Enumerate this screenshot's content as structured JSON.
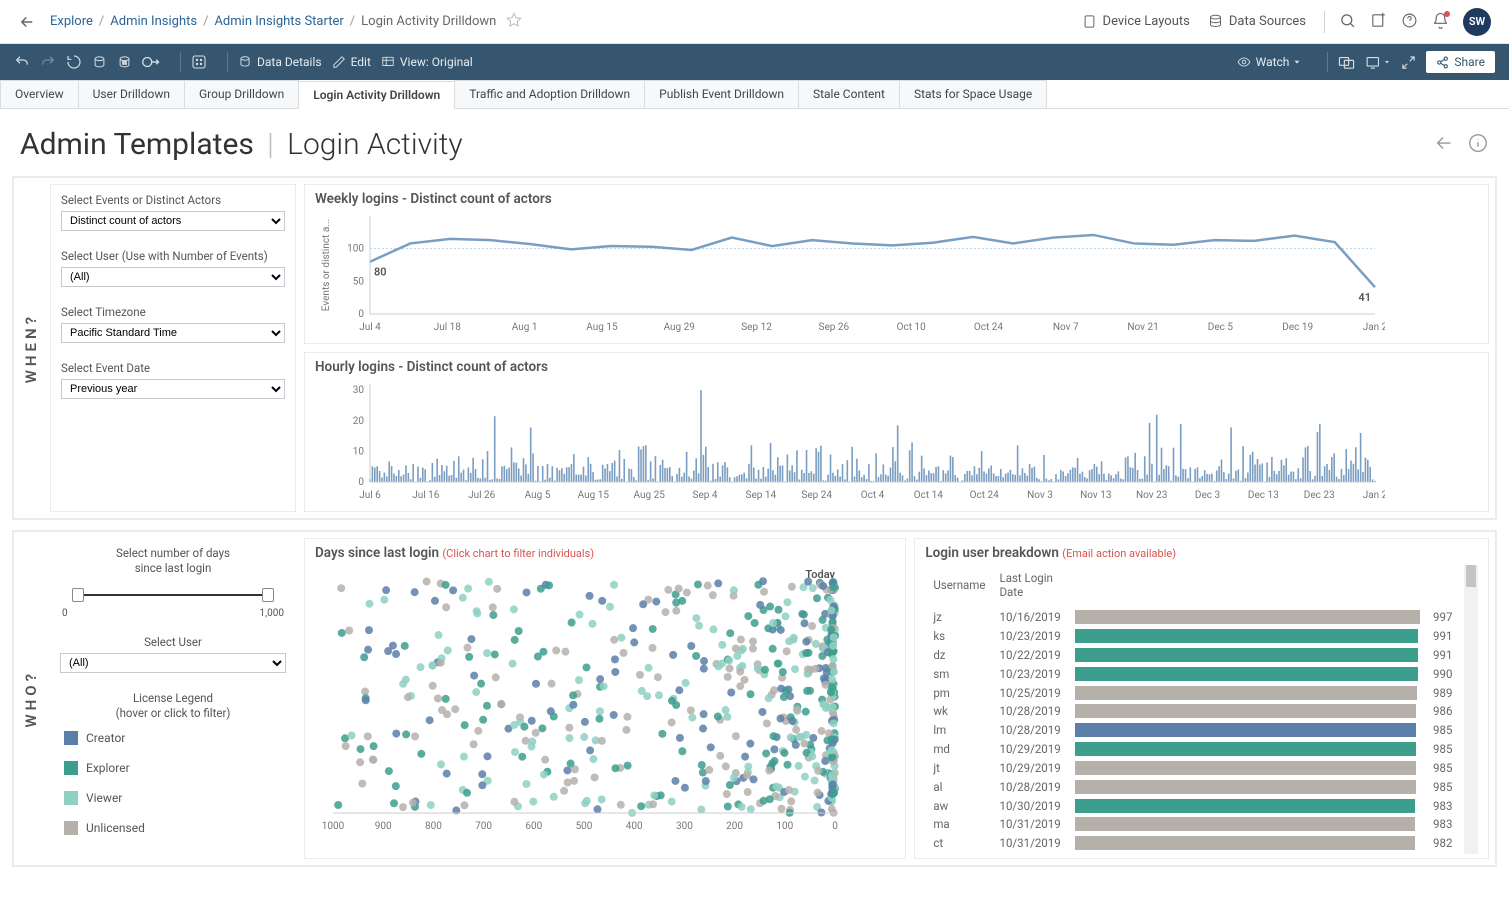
{
  "breadcrumbs": {
    "items": [
      "Explore",
      "Admin Insights",
      "Admin Insights Starter"
    ],
    "current": "Login Activity Drilldown"
  },
  "topbar": {
    "device_layouts": "Device Layouts",
    "data_sources": "Data Sources",
    "avatar": "SW"
  },
  "toolbar": {
    "data_details": "Data Details",
    "edit": "Edit",
    "view": "View: Original",
    "watch": "Watch",
    "share": "Share"
  },
  "tabs": {
    "items": [
      "Overview",
      "User Drilldown",
      "Group Drilldown",
      "Login Activity Drilldown",
      "Traffic and Adoption Drilldown",
      "Publish Event Drilldown",
      "Stale Content",
      "Stats for Space Usage"
    ],
    "active_index": 3
  },
  "page_title": {
    "prefix": "Admin Templates",
    "suffix": "Login Activity"
  },
  "when": {
    "label": "WHEN?",
    "fields": {
      "events_label": "Select Events or Distinct Actors",
      "events_value": "Distinct count of actors",
      "user_label": "Select User (Use with Number of Events)",
      "user_value": "(All)",
      "tz_label": "Select Timezone",
      "tz_value": "Pacific Standard Time",
      "date_label": "Select Event Date",
      "date_value": "Previous year"
    }
  },
  "weekly": {
    "title": "Weekly logins - Distinct count of actors",
    "ylabel": "Events or distinct a...",
    "ylim": [
      0,
      150
    ],
    "yticks": [
      0,
      50,
      100
    ],
    "ref_line": 100,
    "first_label": "80",
    "last_label": "41",
    "line_color": "#7a9ec2",
    "ref_color": "#b7d2ea",
    "xticks": [
      "Jul 4",
      "Jul 18",
      "Aug 1",
      "Aug 15",
      "Aug 29",
      "Sep 12",
      "Sep 26",
      "Oct 10",
      "Oct 24",
      "Nov 7",
      "Nov 21",
      "Dec 5",
      "Dec 19",
      "Jan 2"
    ],
    "values": [
      80,
      108,
      115,
      113,
      107,
      99,
      104,
      103,
      98,
      117,
      104,
      113,
      108,
      105,
      109,
      118,
      108,
      117,
      121,
      108,
      106,
      113,
      112,
      120,
      110,
      41
    ]
  },
  "hourly": {
    "title": "Hourly logins - Distinct count of actors",
    "ylim": [
      0,
      32
    ],
    "yticks": [
      0,
      10,
      20,
      30
    ],
    "bar_color": "#7a9ec2",
    "xticks": [
      "Jul 6",
      "Jul 16",
      "Jul 26",
      "Aug 5",
      "Aug 15",
      "Aug 25",
      "Sep 4",
      "Sep 14",
      "Sep 24",
      "Oct 4",
      "Oct 14",
      "Oct 24",
      "Nov 3",
      "Nov 13",
      "Nov 23",
      "Dec 3",
      "Dec 13",
      "Dec 23",
      "Jan 2"
    ]
  },
  "who": {
    "label": "WHO?",
    "slider_label1": "Select number of days",
    "slider_label2": "since last login",
    "slider_min": "0",
    "slider_max": "1,000",
    "user_label": "Select User",
    "user_value": "(All)",
    "legend_title1": "License Legend",
    "legend_title2": "(hover or click to filter)",
    "legend": [
      {
        "label": "Creator",
        "color": "#5b7fa8"
      },
      {
        "label": "Explorer",
        "color": "#3d9e8e"
      },
      {
        "label": "Viewer",
        "color": "#8fd0c3"
      },
      {
        "label": "Unlicensed",
        "color": "#b6b0ab"
      }
    ]
  },
  "scatter": {
    "title": "Days since last login",
    "hint": "(Click chart to filter individuals)",
    "today_label": "Today",
    "xlim": [
      1000,
      0
    ],
    "xticks": [
      1000,
      900,
      800,
      700,
      600,
      500,
      400,
      300,
      200,
      100,
      0
    ],
    "colors": [
      "#5b7fa8",
      "#3d9e8e",
      "#8fd0c3",
      "#b6b0ab"
    ]
  },
  "breakdown": {
    "title": "Login user breakdown",
    "hint": "(Email action available)",
    "cols": {
      "user": "Username",
      "date": "Last Login Date"
    },
    "max": 1000,
    "rows": [
      {
        "u": "jz",
        "d": "10/16/2019",
        "v": 997,
        "c": "#b6b0ab"
      },
      {
        "u": "ks",
        "d": "10/23/2019",
        "v": 991,
        "c": "#3d9e8e"
      },
      {
        "u": "dz",
        "d": "10/22/2019",
        "v": 991,
        "c": "#3d9e8e"
      },
      {
        "u": "sm",
        "d": "10/23/2019",
        "v": 990,
        "c": "#3d9e8e"
      },
      {
        "u": "pm",
        "d": "10/25/2019",
        "v": 989,
        "c": "#b6b0ab"
      },
      {
        "u": "wk",
        "d": "10/28/2019",
        "v": 986,
        "c": "#b6b0ab"
      },
      {
        "u": "lm",
        "d": "10/28/2019",
        "v": 985,
        "c": "#5b7fa8"
      },
      {
        "u": "md",
        "d": "10/29/2019",
        "v": 985,
        "c": "#3d9e8e"
      },
      {
        "u": "jt",
        "d": "10/29/2019",
        "v": 985,
        "c": "#b6b0ab"
      },
      {
        "u": "al",
        "d": "10/28/2019",
        "v": 985,
        "c": "#b6b0ab"
      },
      {
        "u": "aw",
        "d": "10/30/2019",
        "v": 983,
        "c": "#3d9e8e"
      },
      {
        "u": "ma",
        "d": "10/31/2019",
        "v": 983,
        "c": "#b6b0ab"
      },
      {
        "u": "ct",
        "d": "10/31/2019",
        "v": 982,
        "c": "#b6b0ab"
      }
    ]
  }
}
